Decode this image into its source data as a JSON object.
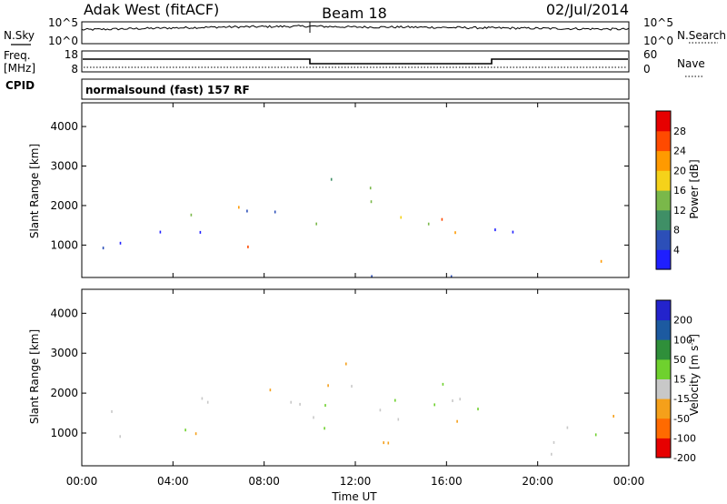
{
  "header": {
    "station": "Adak West (fitACF)",
    "beam": "Beam 18",
    "date": "02/Jul/2014"
  },
  "panels": {
    "noise": {
      "left_label": "N.Sky",
      "right_label": "N.Search",
      "left_ticks": [
        "10^5",
        "10^0"
      ],
      "right_ticks": [
        "10^5",
        "10^0"
      ]
    },
    "freq": {
      "left_label_1": "Freq.",
      "left_label_2": "[MHz]",
      "left_ticks": [
        "18",
        "8"
      ],
      "right_label": "Nave",
      "right_ticks": [
        "60",
        "0"
      ],
      "cpid_label": "CPID"
    },
    "cpid_text": "normalsound (fast) 157 RF",
    "power": {
      "ylabel": "Slant Range [km]",
      "cbar_label": "Power [dB]",
      "cbar_ticks": [
        "28",
        "24",
        "20",
        "16",
        "12",
        "8",
        "4"
      ]
    },
    "velocity": {
      "ylabel": "Slant Range [km]",
      "cbar_label": "Velocity [m s",
      "cbar_sup": "-1",
      "cbar_label_end": "]",
      "cbar_ticks": [
        "200",
        "100",
        "50",
        "15",
        "-15",
        "-50",
        "-100",
        "-200"
      ]
    }
  },
  "colors": {
    "power_scale": [
      "#1f1fff",
      "#2c4fb8",
      "#3f8f66",
      "#7ab84a",
      "#f5d21a",
      "#ff9a00",
      "#ff4a00",
      "#e60000"
    ],
    "velocity_scale": [
      "#2323cc",
      "#1c5aa0",
      "#2f8f3a",
      "#6fd12e",
      "#c8c8c8",
      "#f5a01a",
      "#ff6a00",
      "#e60000"
    ],
    "ground_scatter": "#c8c8c8"
  },
  "chart_data": [
    {
      "type": "line",
      "title": "Adak West (fitACF) Beam 18 02/Jul/2014",
      "xlabel": "Time UT",
      "x_ticks": [
        "00:00",
        "04:00",
        "08:00",
        "12:00",
        "16:00",
        "20:00",
        "00:00"
      ],
      "xlim_hours": [
        0,
        24
      ],
      "series": [
        {
          "name": "N.Sky",
          "hours": [
            0,
            2,
            4,
            6,
            8,
            10,
            12,
            14,
            16,
            18,
            20,
            22,
            24
          ],
          "log10_value": [
            3.2,
            3.4,
            3.6,
            3.8,
            3.9,
            4.0,
            3.8,
            3.8,
            3.7,
            3.6,
            3.5,
            3.4,
            3.3
          ]
        },
        {
          "name": "Freq.",
          "hours": [
            0,
            10,
            10,
            18,
            18,
            24
          ],
          "mhz": [
            13.5,
            13.5,
            10.5,
            10.5,
            13.5,
            13.5
          ]
        }
      ]
    },
    {
      "type": "heatmap",
      "name": "power",
      "ylabel": "Slant Range [km]",
      "y_ticks": [
        1000,
        2000,
        3000,
        4000
      ],
      "ylim": [
        180,
        4600
      ],
      "colorbar": {
        "label": "Power [dB]",
        "ticks": [
          4,
          8,
          12,
          16,
          20,
          24,
          28
        ]
      },
      "regions": [
        {
          "hours": [
            0,
            24
          ],
          "range_km": [
            180,
            300
          ],
          "db": 6
        },
        {
          "hours": [
            4.5,
            10
          ],
          "range_km": [
            1700,
            2300
          ],
          "db": 12
        },
        {
          "hours": [
            6.5,
            10
          ],
          "range_km": [
            1500,
            2000
          ],
          "db": 22
        },
        {
          "hours": [
            5.5,
            8.5
          ],
          "range_km": [
            500,
            1000
          ],
          "db": 24
        },
        {
          "hours": [
            10,
            18
          ],
          "range_km": [
            1100,
            1800
          ],
          "db": 22
        },
        {
          "hours": [
            10,
            16
          ],
          "range_km": [
            2100,
            2700
          ],
          "db": 12
        },
        {
          "hours": [
            20,
            23.5
          ],
          "range_km": [
            350,
            700
          ],
          "db": 24
        },
        {
          "hours": [
            18,
            22
          ],
          "range_km": [
            1000,
            1500
          ],
          "db": 6
        },
        {
          "hours": [
            0,
            6
          ],
          "range_km": [
            900,
            1600
          ],
          "db": 5
        }
      ]
    },
    {
      "type": "heatmap",
      "name": "velocity",
      "ylabel": "Slant Range [km]",
      "y_ticks": [
        1000,
        2000,
        3000,
        4000
      ],
      "ylim": [
        180,
        4600
      ],
      "colorbar": {
        "label": "Velocity [m s-1]",
        "ticks": [
          -200,
          -100,
          -50,
          -15,
          15,
          50,
          100,
          200
        ]
      },
      "regions": [
        {
          "hours": [
            4.5,
            10
          ],
          "range_km": [
            1700,
            2700
          ],
          "mps": 0
        },
        {
          "hours": [
            10,
            18
          ],
          "range_km": [
            1100,
            2300
          ],
          "mps": 0
        },
        {
          "hours": [
            10.5,
            13.5
          ],
          "range_km": [
            1900,
            2800
          ],
          "mps": -30
        },
        {
          "hours": [
            13,
            18
          ],
          "range_km": [
            1200,
            2400
          ],
          "mps": 30
        },
        {
          "hours": [
            12,
            15
          ],
          "range_km": [
            300,
            900
          ],
          "mps": -40
        },
        {
          "hours": [
            18,
            23.5
          ],
          "range_km": [
            350,
            1500
          ],
          "mps": 0
        },
        {
          "hours": [
            0,
            6
          ],
          "range_km": [
            900,
            1600
          ],
          "mps": 0
        }
      ]
    }
  ]
}
